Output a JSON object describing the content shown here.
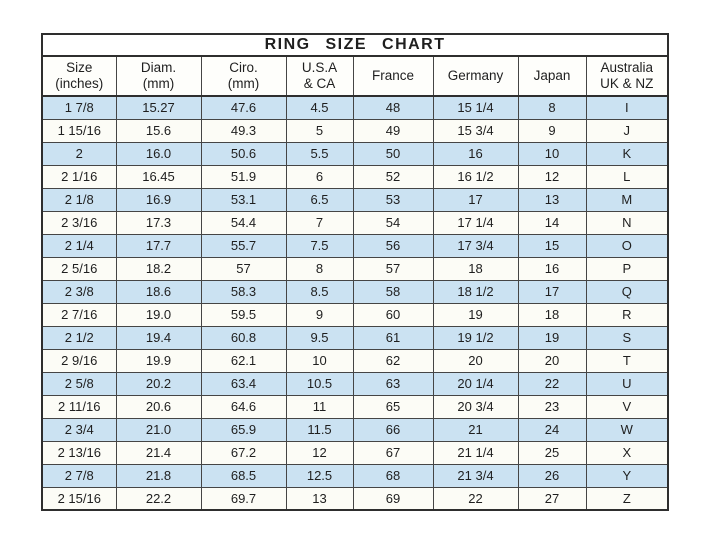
{
  "colors": {
    "row_blue": "#cbe2f2",
    "row_plain": "#fcfcf6",
    "border_dark": "#2e2e2e",
    "border_inner": "#454545",
    "text": "#1f1f1f",
    "page_bg": "#ffffff"
  },
  "chart_data": {
    "type": "table",
    "title": "RING SIZE CHART",
    "columns": [
      {
        "line1": "Size",
        "line2": "(inches)"
      },
      {
        "line1": "Diam.",
        "line2": "(mm)"
      },
      {
        "line1": "Ciro.",
        "line2": "(mm)"
      },
      {
        "line1": "U.S.A",
        "line2": "& CA"
      },
      {
        "line1": "France",
        "line2": ""
      },
      {
        "line1": "Germany",
        "line2": ""
      },
      {
        "line1": "Japan",
        "line2": ""
      },
      {
        "line1": "Australia",
        "line2": "UK & NZ"
      }
    ],
    "rows": [
      [
        "1 7/8",
        "15.27",
        "47.6",
        "4.5",
        "48",
        "15 1/4",
        "8",
        "I"
      ],
      [
        "1 15/16",
        "15.6",
        "49.3",
        "5",
        "49",
        "15 3/4",
        "9",
        "J"
      ],
      [
        "2",
        "16.0",
        "50.6",
        "5.5",
        "50",
        "16",
        "10",
        "K"
      ],
      [
        "2 1/16",
        "16.45",
        "51.9",
        "6",
        "52",
        "16 1/2",
        "12",
        "L"
      ],
      [
        "2 1/8",
        "16.9",
        "53.1",
        "6.5",
        "53",
        "17",
        "13",
        "M"
      ],
      [
        "2 3/16",
        "17.3",
        "54.4",
        "7",
        "54",
        "17 1/4",
        "14",
        "N"
      ],
      [
        "2 1/4",
        "17.7",
        "55.7",
        "7.5",
        "56",
        "17 3/4",
        "15",
        "O"
      ],
      [
        "2 5/16",
        "18.2",
        "57",
        "8",
        "57",
        "18",
        "16",
        "P"
      ],
      [
        "2 3/8",
        "18.6",
        "58.3",
        "8.5",
        "58",
        "18 1/2",
        "17",
        "Q"
      ],
      [
        "2 7/16",
        "19.0",
        "59.5",
        "9",
        "60",
        "19",
        "18",
        "R"
      ],
      [
        "2 1/2",
        "19.4",
        "60.8",
        "9.5",
        "61",
        "19 1/2",
        "19",
        "S"
      ],
      [
        "2 9/16",
        "19.9",
        "62.1",
        "10",
        "62",
        "20",
        "20",
        "T"
      ],
      [
        "2 5/8",
        "20.2",
        "63.4",
        "10.5",
        "63",
        "20 1/4",
        "22",
        "U"
      ],
      [
        "2 11/16",
        "20.6",
        "64.6",
        "11",
        "65",
        "20 3/4",
        "23",
        "V"
      ],
      [
        "2 3/4",
        "21.0",
        "65.9",
        "11.5",
        "66",
        "21",
        "24",
        "W"
      ],
      [
        "2 13/16",
        "21.4",
        "67.2",
        "12",
        "67",
        "21 1/4",
        "25",
        "X"
      ],
      [
        "2 7/8",
        "21.8",
        "68.5",
        "12.5",
        "68",
        "21 3/4",
        "26",
        "Y"
      ],
      [
        "2 15/16",
        "22.2",
        "69.7",
        "13",
        "69",
        "22",
        "27",
        "Z"
      ]
    ]
  }
}
